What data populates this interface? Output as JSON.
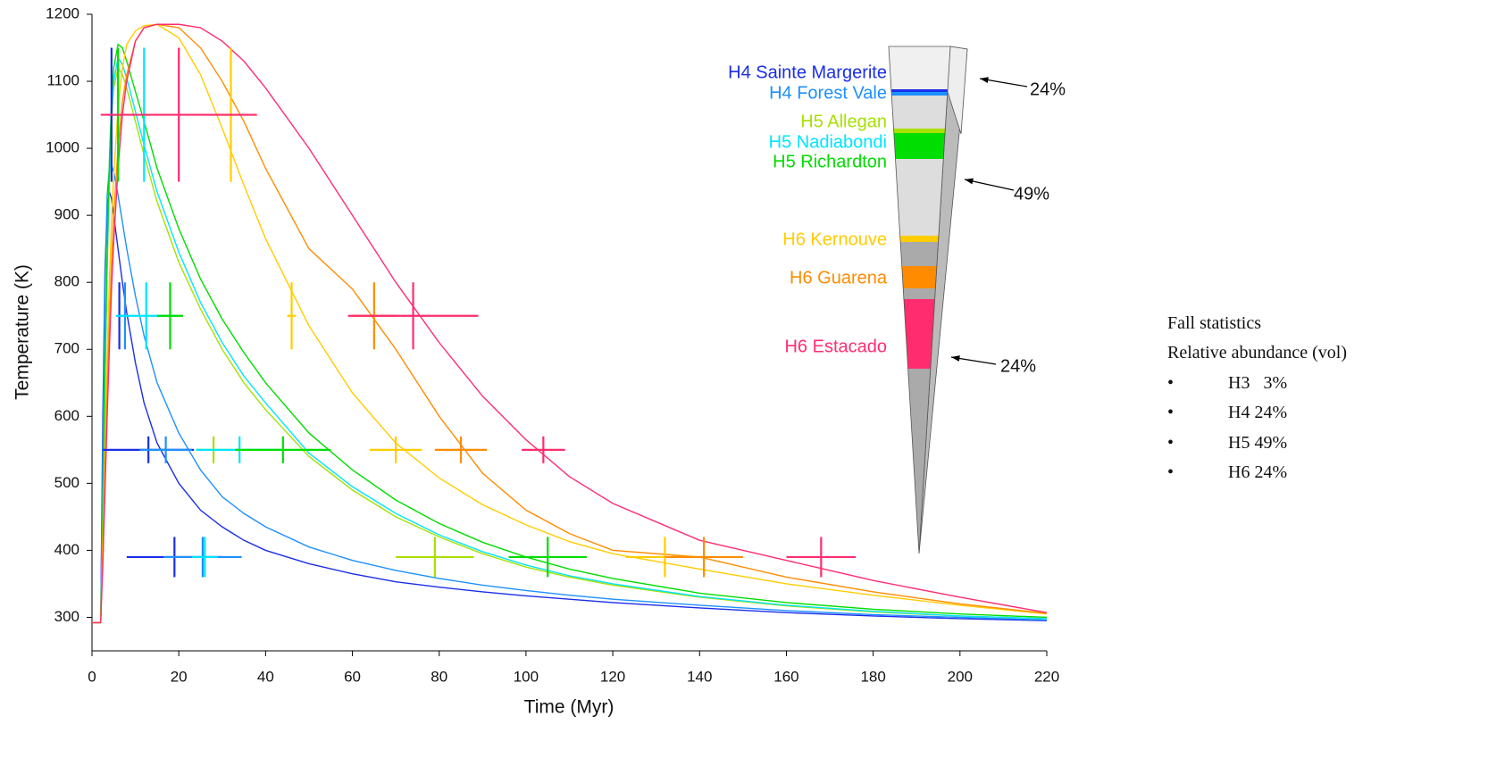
{
  "chart_data": {
    "type": "line",
    "xlabel": "Time (Myr)",
    "ylabel": "Temperature (K)",
    "xlim": [
      0,
      220
    ],
    "ylim": [
      250,
      1200
    ],
    "xticks": [
      0,
      20,
      40,
      60,
      80,
      100,
      120,
      140,
      160,
      180,
      200,
      220
    ],
    "yticks": [
      300,
      400,
      500,
      600,
      700,
      800,
      900,
      1000,
      1100,
      1200
    ],
    "x": [
      0,
      2,
      2.5,
      3,
      3.5,
      4,
      4.5,
      5,
      6,
      7,
      8,
      10,
      12,
      15,
      20,
      25,
      30,
      35,
      40,
      50,
      60,
      70,
      80,
      90,
      100,
      110,
      120,
      140,
      160,
      180,
      200,
      220
    ],
    "series": [
      {
        "name": "H4 Sainte Margerite",
        "color": "#1a2ee8",
        "values": [
          292,
          292,
          600,
          820,
          910,
          935,
          925,
          900,
          850,
          800,
          755,
          680,
          620,
          560,
          500,
          460,
          435,
          415,
          400,
          380,
          365,
          353,
          345,
          338,
          332,
          327,
          322,
          314,
          307,
          302,
          298,
          295
        ],
        "cross_x": [
          4.5,
          6.3,
          13,
          19
        ],
        "cross_y": [
          1050,
          750,
          550,
          390
        ],
        "cross_xerr": [
          0.5,
          0.5,
          10.5,
          11
        ],
        "cross_yerr": [
          100,
          50,
          20,
          30
        ]
      },
      {
        "name": "H4 Forest Vale",
        "color": "#1e90ff",
        "values": [
          292,
          292,
          550,
          800,
          930,
          970,
          975,
          965,
          930,
          890,
          850,
          780,
          720,
          650,
          575,
          520,
          480,
          455,
          435,
          405,
          385,
          370,
          358,
          348,
          340,
          333,
          327,
          318,
          310,
          304,
          300,
          296
        ],
        "cross_x": [
          7.6,
          17,
          25.5
        ],
        "cross_y": [
          750,
          550,
          390
        ],
        "cross_xerr": [
          1,
          6,
          9
        ],
        "cross_yerr": [
          50,
          20,
          30
        ]
      },
      {
        "name": "H5 Allegan",
        "color": "#a8e000",
        "values": [
          292,
          292,
          450,
          650,
          820,
          950,
          1040,
          1090,
          1120,
          1110,
          1090,
          1040,
          990,
          920,
          830,
          760,
          700,
          650,
          610,
          540,
          490,
          450,
          420,
          395,
          375,
          360,
          348,
          330,
          317,
          308,
          302,
          298
        ],
        "cross_x": [
          28,
          79
        ],
        "cross_y": [
          550,
          390
        ],
        "cross_xerr": [
          4,
          9
        ],
        "cross_yerr": [
          20,
          30
        ]
      },
      {
        "name": "H5 Nadiabondi",
        "color": "#00e5ff",
        "values": [
          292,
          292,
          450,
          660,
          830,
          960,
          1050,
          1100,
          1135,
          1125,
          1105,
          1055,
          1005,
          935,
          845,
          770,
          710,
          660,
          620,
          545,
          495,
          455,
          423,
          398,
          378,
          362,
          350,
          331,
          318,
          309,
          302,
          298
        ],
        "cross_x": [
          12,
          12.5,
          34,
          26
        ],
        "cross_y": [
          1050,
          750,
          550,
          390
        ],
        "cross_xerr": [
          1,
          7,
          10,
          3
        ],
        "cross_yerr": [
          100,
          50,
          20,
          30
        ]
      },
      {
        "name": "H5 Richardton",
        "color": "#00dd00",
        "values": [
          292,
          292,
          460,
          680,
          850,
          980,
          1070,
          1120,
          1155,
          1150,
          1130,
          1085,
          1040,
          970,
          880,
          805,
          745,
          695,
          650,
          575,
          520,
          475,
          440,
          412,
          390,
          372,
          358,
          336,
          322,
          312,
          305,
          300
        ],
        "cross_x": [
          6,
          18,
          44,
          105
        ],
        "cross_y": [
          1050,
          750,
          550,
          390
        ],
        "cross_xerr": [
          1,
          3,
          11,
          9
        ],
        "cross_yerr": [
          100,
          50,
          20,
          30
        ]
      },
      {
        "name": "H6 Kernouve",
        "color": "#ffcc00",
        "values": [
          292,
          292,
          420,
          560,
          690,
          800,
          890,
          960,
          1060,
          1120,
          1155,
          1175,
          1183,
          1185,
          1165,
          1110,
          1030,
          945,
          865,
          735,
          635,
          560,
          508,
          468,
          438,
          413,
          395,
          372,
          350,
          333,
          318,
          305
        ],
        "cross_x": [
          32,
          46,
          70,
          132
        ],
        "cross_y": [
          1050,
          750,
          550,
          390
        ],
        "cross_xerr": [
          6,
          1,
          6,
          9
        ],
        "cross_yerr": [
          100,
          50,
          20,
          30
        ]
      },
      {
        "name": "H6 Guarena",
        "color": "#ff8c00",
        "values": [
          292,
          292,
          400,
          520,
          640,
          740,
          830,
          900,
          1000,
          1070,
          1110,
          1160,
          1180,
          1185,
          1180,
          1150,
          1100,
          1040,
          970,
          850,
          790,
          700,
          600,
          515,
          460,
          425,
          400,
          390,
          360,
          338,
          320,
          306
        ],
        "cross_x": [
          65,
          85,
          141
        ],
        "cross_y": [
          750,
          550,
          390
        ],
        "cross_xerr": [
          5,
          6,
          9
        ],
        "cross_yerr": [
          50,
          20,
          30
        ]
      },
      {
        "name": "H6 Estacado",
        "color": "#ff2d6f",
        "values": [
          292,
          292,
          380,
          490,
          600,
          700,
          790,
          860,
          970,
          1050,
          1100,
          1160,
          1180,
          1185,
          1185,
          1180,
          1160,
          1130,
          1090,
          1000,
          900,
          800,
          710,
          630,
          565,
          510,
          470,
          415,
          385,
          355,
          330,
          307
        ],
        "cross_x": [
          20,
          74,
          104,
          168
        ],
        "cross_y": [
          1050,
          750,
          550,
          390
        ],
        "cross_xerr": [
          18,
          15,
          5,
          8
        ],
        "cross_yerr": [
          100,
          50,
          20,
          30
        ]
      }
    ],
    "cone_shares": {
      "values": [
        24,
        49,
        24
      ],
      "value_labels": [
        "24%",
        "49%",
        "24%"
      ]
    },
    "side_panel": {
      "title": "Fall statistics",
      "subtitle": "Relative abundance (vol)",
      "bullet": "•",
      "items": [
        "H3   3%",
        "H4 24%",
        "H5 49%",
        "H6 24%"
      ]
    }
  }
}
